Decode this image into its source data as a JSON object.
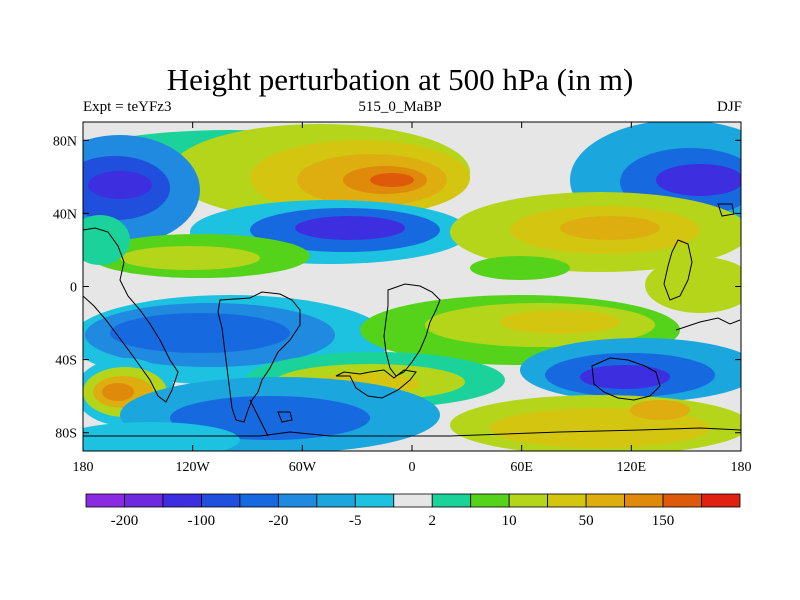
{
  "title": "Height perturbation at 500 hPa (in m)",
  "subtitle_left": "Expt = teYFz3",
  "subtitle_center": "515_0_MaBP",
  "subtitle_right": "DJF",
  "chart_data": {
    "type": "heatmap",
    "projection": "cylindrical equidistant",
    "variable": "500 hPa height perturbation",
    "units": "m",
    "x_ticks": [
      "180",
      "120W",
      "60W",
      "0",
      "60E",
      "120E",
      "180"
    ],
    "x_tick_values": [
      -180,
      -120,
      -60,
      0,
      60,
      120,
      180
    ],
    "y_ticks": [
      "80N",
      "40N",
      "0",
      "40S",
      "80S"
    ],
    "y_tick_values": [
      80,
      40,
      0,
      -40,
      -80
    ],
    "xlim": [
      -180,
      180
    ],
    "ylim": [
      -90,
      90
    ],
    "colorbar": {
      "labels": [
        "-200",
        "-100",
        "-20",
        "-5",
        "2",
        "10",
        "50",
        "150"
      ],
      "colors": [
        "#8a2be2",
        "#6f2ae0",
        "#3d2ee0",
        "#1f4fdc",
        "#1769e0",
        "#1f8ae0",
        "#1ba6de",
        "#1cc2e0",
        "#e6e6e6",
        "#1bd39a",
        "#55d21a",
        "#b5d51a",
        "#d4c511",
        "#deae10",
        "#df8a0b",
        "#de5a0a",
        "#e02010"
      ]
    },
    "features": [
      {
        "name": "positive anomaly",
        "lon": 0,
        "lat": 58,
        "level": "150"
      },
      {
        "name": "negative anomaly",
        "lon": -170,
        "lat": 55,
        "level": "-100"
      },
      {
        "name": "negative anomaly",
        "lon": 165,
        "lat": 58,
        "level": "-100"
      },
      {
        "name": "negative anomaly",
        "lon": -30,
        "lat": 30,
        "level": "-100"
      },
      {
        "name": "negative anomaly",
        "lon": -110,
        "lat": -35,
        "level": "-20"
      },
      {
        "name": "negative anomaly",
        "lon": 110,
        "lat": -50,
        "level": "-200"
      },
      {
        "name": "positive anomaly",
        "lon": -165,
        "lat": -57,
        "level": "150"
      },
      {
        "name": "positive anomaly",
        "lon": 100,
        "lat": 35,
        "level": "50"
      },
      {
        "name": "positive anomaly",
        "lon": 120,
        "lat": -75,
        "level": "50"
      }
    ]
  }
}
